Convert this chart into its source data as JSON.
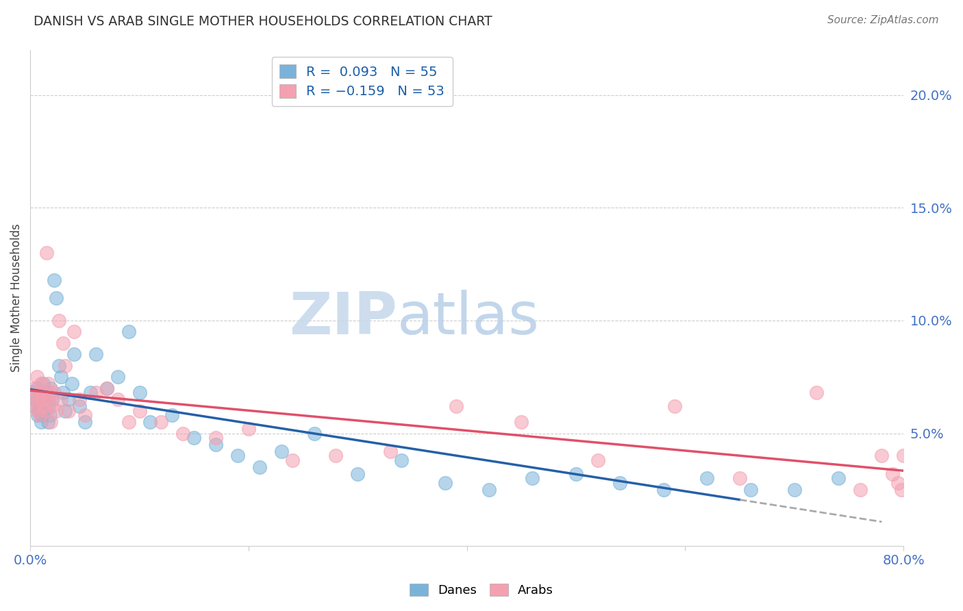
{
  "title": "DANISH VS ARAB SINGLE MOTHER HOUSEHOLDS CORRELATION CHART",
  "source": "Source: ZipAtlas.com",
  "tick_color": "#4472c4",
  "ylabel": "Single Mother Households",
  "xlim": [
    0.0,
    0.8
  ],
  "ylim": [
    0.0,
    0.22
  ],
  "xticks": [
    0.0,
    0.2,
    0.4,
    0.6,
    0.8
  ],
  "xtick_labels": [
    "0.0%",
    "",
    "",
    "",
    "80.0%"
  ],
  "yticks_right": [
    0.05,
    0.1,
    0.15,
    0.2
  ],
  "ytick_labels_right": [
    "5.0%",
    "10.0%",
    "15.0%",
    "20.0%"
  ],
  "danes_color": "#7ab3d9",
  "arabs_color": "#f4a0b0",
  "danes_line_color": "#2560a8",
  "arabs_line_color": "#e0506a",
  "background_color": "#ffffff",
  "danes_x": [
    0.003,
    0.004,
    0.005,
    0.006,
    0.007,
    0.008,
    0.009,
    0.01,
    0.011,
    0.012,
    0.013,
    0.014,
    0.015,
    0.016,
    0.017,
    0.018,
    0.019,
    0.02,
    0.022,
    0.024,
    0.026,
    0.028,
    0.03,
    0.032,
    0.035,
    0.038,
    0.04,
    0.045,
    0.05,
    0.055,
    0.06,
    0.07,
    0.08,
    0.09,
    0.1,
    0.11,
    0.13,
    0.15,
    0.17,
    0.19,
    0.21,
    0.23,
    0.26,
    0.3,
    0.34,
    0.38,
    0.42,
    0.46,
    0.5,
    0.54,
    0.58,
    0.62,
    0.66,
    0.7,
    0.74
  ],
  "danes_y": [
    0.068,
    0.062,
    0.065,
    0.07,
    0.058,
    0.06,
    0.062,
    0.055,
    0.058,
    0.072,
    0.065,
    0.06,
    0.068,
    0.055,
    0.062,
    0.058,
    0.07,
    0.065,
    0.118,
    0.11,
    0.08,
    0.075,
    0.068,
    0.06,
    0.065,
    0.072,
    0.085,
    0.062,
    0.055,
    0.068,
    0.085,
    0.07,
    0.075,
    0.095,
    0.068,
    0.055,
    0.058,
    0.048,
    0.045,
    0.04,
    0.035,
    0.042,
    0.05,
    0.032,
    0.038,
    0.028,
    0.025,
    0.03,
    0.032,
    0.028,
    0.025,
    0.03,
    0.025,
    0.025,
    0.03
  ],
  "arabs_x": [
    0.002,
    0.003,
    0.004,
    0.005,
    0.006,
    0.007,
    0.008,
    0.009,
    0.01,
    0.011,
    0.012,
    0.013,
    0.014,
    0.015,
    0.016,
    0.017,
    0.018,
    0.019,
    0.02,
    0.022,
    0.024,
    0.026,
    0.028,
    0.03,
    0.032,
    0.035,
    0.04,
    0.045,
    0.05,
    0.06,
    0.07,
    0.08,
    0.09,
    0.1,
    0.12,
    0.14,
    0.17,
    0.2,
    0.24,
    0.28,
    0.33,
    0.39,
    0.45,
    0.52,
    0.59,
    0.65,
    0.72,
    0.76,
    0.78,
    0.79,
    0.795,
    0.798,
    0.8
  ],
  "arabs_y": [
    0.065,
    0.07,
    0.062,
    0.068,
    0.075,
    0.06,
    0.065,
    0.058,
    0.072,
    0.068,
    0.062,
    0.065,
    0.06,
    0.13,
    0.072,
    0.065,
    0.068,
    0.055,
    0.062,
    0.068,
    0.06,
    0.1,
    0.065,
    0.09,
    0.08,
    0.06,
    0.095,
    0.065,
    0.058,
    0.068,
    0.07,
    0.065,
    0.055,
    0.06,
    0.055,
    0.05,
    0.048,
    0.052,
    0.038,
    0.04,
    0.042,
    0.062,
    0.055,
    0.038,
    0.062,
    0.03,
    0.068,
    0.025,
    0.04,
    0.032,
    0.028,
    0.025,
    0.04
  ]
}
